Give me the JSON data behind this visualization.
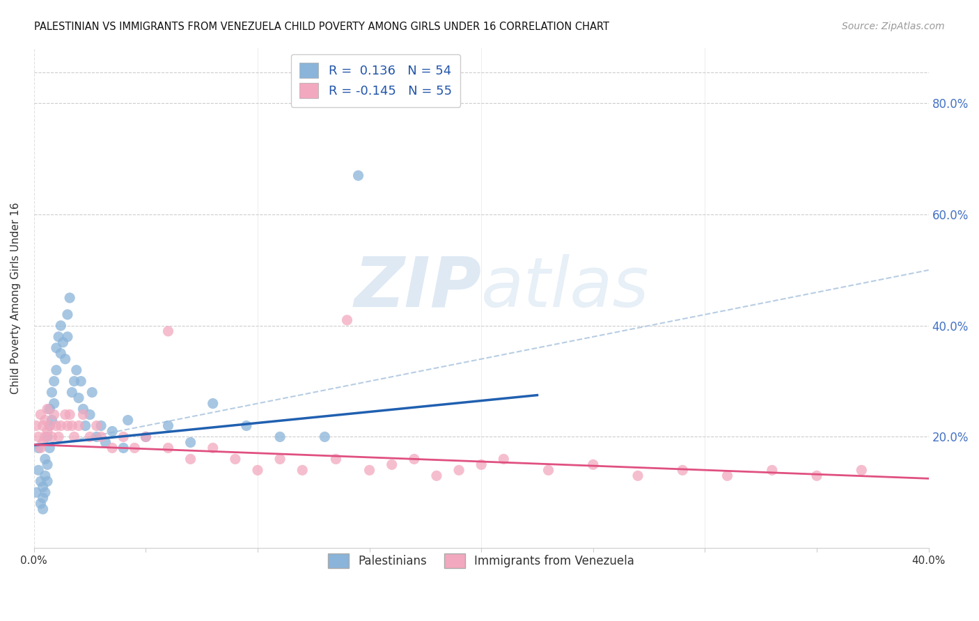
{
  "title": "PALESTINIAN VS IMMIGRANTS FROM VENEZUELA CHILD POVERTY AMONG GIRLS UNDER 16 CORRELATION CHART",
  "source": "Source: ZipAtlas.com",
  "ylabel": "Child Poverty Among Girls Under 16",
  "xlim": [
    0.0,
    0.4
  ],
  "ylim": [
    0.0,
    0.9
  ],
  "right_ytick_labels": [
    "20.0%",
    "40.0%",
    "60.0%",
    "80.0%"
  ],
  "right_ytick_vals": [
    0.2,
    0.4,
    0.6,
    0.8
  ],
  "blue_color": "#8ab4d9",
  "pink_color": "#f2a8be",
  "blue_line_color": "#2060b0",
  "pink_line_color": "#e05080",
  "dash_line_color": "#b0c8e0",
  "legend_blue_label": "Palestinians",
  "legend_pink_label": "Immigrants from Venezuela",
  "watermark_zip": "ZIP",
  "watermark_atlas": "atlas",
  "blue_scatter_x": [
    0.001,
    0.002,
    0.002,
    0.003,
    0.003,
    0.004,
    0.004,
    0.004,
    0.005,
    0.005,
    0.005,
    0.006,
    0.006,
    0.006,
    0.007,
    0.007,
    0.007,
    0.008,
    0.008,
    0.009,
    0.009,
    0.01,
    0.01,
    0.011,
    0.012,
    0.012,
    0.013,
    0.014,
    0.015,
    0.015,
    0.016,
    0.017,
    0.018,
    0.019,
    0.02,
    0.021,
    0.022,
    0.023,
    0.025,
    0.026,
    0.028,
    0.03,
    0.032,
    0.035,
    0.04,
    0.042,
    0.05,
    0.06,
    0.07,
    0.08,
    0.095,
    0.11,
    0.13,
    0.145
  ],
  "blue_scatter_y": [
    0.1,
    0.14,
    0.18,
    0.08,
    0.12,
    0.07,
    0.09,
    0.11,
    0.13,
    0.16,
    0.1,
    0.12,
    0.15,
    0.2,
    0.18,
    0.22,
    0.25,
    0.23,
    0.28,
    0.26,
    0.3,
    0.32,
    0.36,
    0.38,
    0.35,
    0.4,
    0.37,
    0.34,
    0.38,
    0.42,
    0.45,
    0.28,
    0.3,
    0.32,
    0.27,
    0.3,
    0.25,
    0.22,
    0.24,
    0.28,
    0.2,
    0.22,
    0.19,
    0.21,
    0.18,
    0.23,
    0.2,
    0.22,
    0.19,
    0.26,
    0.22,
    0.2,
    0.2,
    0.67
  ],
  "pink_scatter_x": [
    0.001,
    0.002,
    0.003,
    0.003,
    0.004,
    0.004,
    0.005,
    0.005,
    0.006,
    0.006,
    0.007,
    0.008,
    0.009,
    0.01,
    0.011,
    0.012,
    0.014,
    0.015,
    0.016,
    0.017,
    0.018,
    0.02,
    0.022,
    0.025,
    0.028,
    0.03,
    0.035,
    0.04,
    0.045,
    0.05,
    0.06,
    0.07,
    0.08,
    0.09,
    0.1,
    0.11,
    0.12,
    0.135,
    0.15,
    0.17,
    0.19,
    0.21,
    0.23,
    0.25,
    0.27,
    0.29,
    0.31,
    0.33,
    0.35,
    0.37,
    0.14,
    0.16,
    0.18,
    0.06,
    0.2
  ],
  "pink_scatter_y": [
    0.22,
    0.2,
    0.24,
    0.18,
    0.22,
    0.19,
    0.23,
    0.2,
    0.25,
    0.21,
    0.22,
    0.2,
    0.24,
    0.22,
    0.2,
    0.22,
    0.24,
    0.22,
    0.24,
    0.22,
    0.2,
    0.22,
    0.24,
    0.2,
    0.22,
    0.2,
    0.18,
    0.2,
    0.18,
    0.2,
    0.18,
    0.16,
    0.18,
    0.16,
    0.14,
    0.16,
    0.14,
    0.16,
    0.14,
    0.16,
    0.14,
    0.16,
    0.14,
    0.15,
    0.13,
    0.14,
    0.13,
    0.14,
    0.13,
    0.14,
    0.41,
    0.15,
    0.13,
    0.39,
    0.15
  ],
  "blue_trend_x": [
    0.0,
    0.225
  ],
  "blue_trend_y": [
    0.185,
    0.275
  ],
  "pink_trend_x": [
    0.0,
    0.4
  ],
  "pink_trend_y": [
    0.186,
    0.125
  ],
  "dash_trend_x": [
    0.0,
    0.4
  ],
  "dash_trend_y": [
    0.18,
    0.5
  ]
}
